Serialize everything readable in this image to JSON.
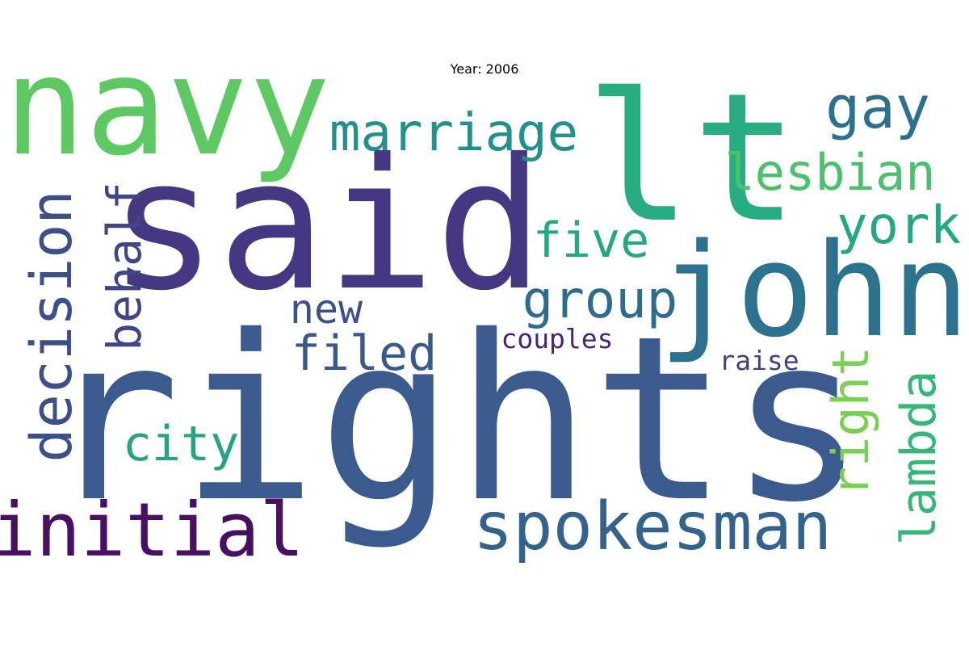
{
  "title": "Year: 2006",
  "words": [
    {
      "text": "rights",
      "color": "#3b5b8f"
    },
    {
      "text": "said",
      "color": "#453781"
    },
    {
      "text": "navy",
      "color": "#5ec962"
    },
    {
      "text": "lt",
      "color": "#27ad81"
    },
    {
      "text": "john",
      "color": "#2c728e"
    },
    {
      "text": "spokesman",
      "color": "#33638d"
    },
    {
      "text": "initial",
      "color": "#471063"
    },
    {
      "text": "decision",
      "color": "#3c4f8a"
    },
    {
      "text": "marriage",
      "color": "#21918c"
    },
    {
      "text": "gay",
      "color": "#2d6f8e"
    },
    {
      "text": "lesbian",
      "color": "#4ac16d"
    },
    {
      "text": "york",
      "color": "#22a884"
    },
    {
      "text": "group",
      "color": "#2e6b8e"
    },
    {
      "text": "five",
      "color": "#22a884"
    },
    {
      "text": "new",
      "color": "#3b518b"
    },
    {
      "text": "filed",
      "color": "#38598c"
    },
    {
      "text": "behalf",
      "color": "#414487"
    },
    {
      "text": "right",
      "color": "#7ad151"
    },
    {
      "text": "lambda",
      "color": "#35b779"
    },
    {
      "text": "city",
      "color": "#25a384"
    },
    {
      "text": "couples",
      "color": "#482475"
    },
    {
      "text": "raise",
      "color": "#433e85"
    }
  ]
}
